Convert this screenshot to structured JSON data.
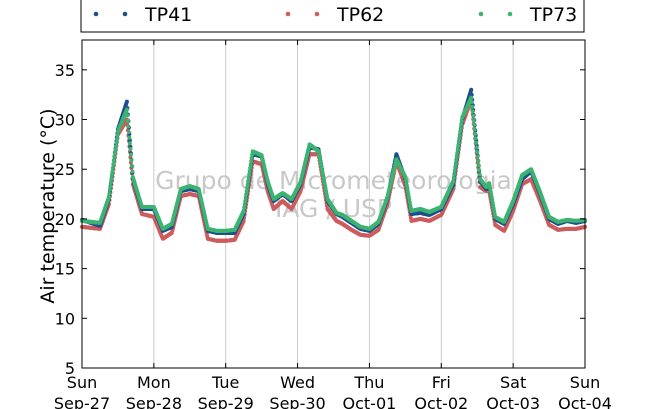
{
  "chart_data": {
    "type": "scatter",
    "ylabel": "Air temperature (°C)",
    "ylim": [
      5,
      38
    ],
    "yticks": [
      5,
      10,
      15,
      20,
      25,
      30,
      35
    ],
    "xlim": [
      "2015-09-27 00:00",
      "2015-10-04 00:00"
    ],
    "xticks": [
      {
        "day": "Sun",
        "date": "Sep-27"
      },
      {
        "day": "Mon",
        "date": "Sep-28"
      },
      {
        "day": "Tue",
        "date": "Sep-29"
      },
      {
        "day": "Wed",
        "date": "Sep-30"
      },
      {
        "day": "Thu",
        "date": "Oct-01"
      },
      {
        "day": "Fri",
        "date": "Oct-02"
      },
      {
        "day": "Sat",
        "date": "Oct-03"
      },
      {
        "day": "Sun",
        "date": "Oct-04"
      }
    ],
    "grid": "vertical",
    "legend_position": "top",
    "watermark": [
      "Grupo de Micrometeorologia",
      "IAG / USP"
    ],
    "series": [
      {
        "name": "TP41",
        "color": "#1f4e8c",
        "x": [
          "2015-09-27 00:00",
          "2015-09-27 06:00",
          "2015-09-27 09:00",
          "2015-09-27 12:00",
          "2015-09-27 15:00",
          "2015-09-27 17:00",
          "2015-09-27 20:00",
          "2015-09-28 00:00",
          "2015-09-28 03:00",
          "2015-09-28 06:00",
          "2015-09-28 09:00",
          "2015-09-28 12:00",
          "2015-09-28 15:00",
          "2015-09-28 18:00",
          "2015-09-28 21:00",
          "2015-09-29 00:00",
          "2015-09-29 03:00",
          "2015-09-29 06:00",
          "2015-09-29 09:00",
          "2015-09-29 12:00",
          "2015-09-29 14:00",
          "2015-09-29 16:00",
          "2015-09-29 19:00",
          "2015-09-29 22:00",
          "2015-09-30 01:00",
          "2015-09-30 04:00",
          "2015-09-30 07:00",
          "2015-09-30 10:00",
          "2015-09-30 13:00",
          "2015-09-30 15:00",
          "2015-09-30 18:00",
          "2015-09-30 21:00",
          "2015-10-01 00:00",
          "2015-10-01 03:00",
          "2015-10-01 06:00",
          "2015-10-01 09:00",
          "2015-10-01 12:00",
          "2015-10-01 14:00",
          "2015-10-01 17:00",
          "2015-10-01 20:00",
          "2015-10-02 00:00",
          "2015-10-02 04:00",
          "2015-10-02 07:00",
          "2015-10-02 10:00",
          "2015-10-02 13:00",
          "2015-10-02 15:00",
          "2015-10-02 16:00",
          "2015-10-02 18:00",
          "2015-10-02 21:00",
          "2015-10-03 00:00",
          "2015-10-03 03:00",
          "2015-10-03 06:00",
          "2015-10-03 09:00",
          "2015-10-03 12:00",
          "2015-10-03 15:00",
          "2015-10-03 18:00",
          "2015-10-03 21:00",
          "2015-10-04 00:00"
        ],
        "y": [
          19.9,
          19.3,
          22.0,
          29.0,
          31.8,
          24.0,
          21.0,
          21.0,
          18.8,
          19.2,
          22.8,
          23.0,
          22.8,
          18.8,
          18.6,
          18.6,
          18.6,
          20.5,
          26.5,
          26.3,
          23.5,
          21.8,
          22.5,
          21.8,
          23.5,
          27.2,
          27.0,
          21.8,
          20.5,
          20.2,
          19.6,
          19.0,
          18.8,
          19.5,
          22.0,
          26.5,
          24.0,
          20.5,
          20.6,
          20.4,
          21.0,
          23.5,
          30.0,
          33.0,
          23.8,
          23.0,
          23.5,
          20.0,
          19.5,
          21.5,
          24.0,
          24.8,
          22.5,
          20.0,
          19.5,
          19.8,
          19.6,
          19.8
        ]
      },
      {
        "name": "TP62",
        "color": "#cd5c5c",
        "x": [
          "2015-09-27 00:00",
          "2015-09-27 06:00",
          "2015-09-27 09:00",
          "2015-09-27 12:00",
          "2015-09-27 15:00",
          "2015-09-27 17:00",
          "2015-09-27 20:00",
          "2015-09-28 00:00",
          "2015-09-28 03:00",
          "2015-09-28 06:00",
          "2015-09-28 09:00",
          "2015-09-28 12:00",
          "2015-09-28 15:00",
          "2015-09-28 18:00",
          "2015-09-28 21:00",
          "2015-09-29 00:00",
          "2015-09-29 03:00",
          "2015-09-29 06:00",
          "2015-09-29 09:00",
          "2015-09-29 12:00",
          "2015-09-29 14:00",
          "2015-09-29 16:00",
          "2015-09-29 19:00",
          "2015-09-29 22:00",
          "2015-09-30 01:00",
          "2015-09-30 04:00",
          "2015-09-30 07:00",
          "2015-09-30 10:00",
          "2015-09-30 13:00",
          "2015-09-30 15:00",
          "2015-09-30 18:00",
          "2015-09-30 21:00",
          "2015-10-01 00:00",
          "2015-10-01 03:00",
          "2015-10-01 06:00",
          "2015-10-01 09:00",
          "2015-10-01 12:00",
          "2015-10-01 14:00",
          "2015-10-01 17:00",
          "2015-10-01 20:00",
          "2015-10-02 00:00",
          "2015-10-02 04:00",
          "2015-10-02 07:00",
          "2015-10-02 10:00",
          "2015-10-02 13:00",
          "2015-10-02 15:00",
          "2015-10-02 16:00",
          "2015-10-02 18:00",
          "2015-10-02 21:00",
          "2015-10-03 00:00",
          "2015-10-03 03:00",
          "2015-10-03 06:00",
          "2015-10-03 09:00",
          "2015-10-03 12:00",
          "2015-10-03 15:00",
          "2015-10-03 18:00",
          "2015-10-03 21:00",
          "2015-10-04 00:00"
        ],
        "y": [
          19.2,
          19.0,
          21.5,
          28.5,
          30.0,
          23.5,
          20.5,
          20.2,
          18.0,
          18.6,
          22.3,
          22.5,
          22.3,
          18.0,
          17.8,
          17.8,
          17.9,
          19.8,
          25.8,
          25.5,
          22.8,
          21.0,
          21.8,
          21.0,
          22.8,
          26.5,
          26.5,
          21.0,
          19.8,
          19.5,
          18.9,
          18.4,
          18.3,
          18.9,
          21.5,
          25.8,
          23.3,
          19.8,
          20.0,
          19.8,
          20.4,
          23.0,
          29.5,
          32.0,
          23.2,
          22.8,
          22.8,
          19.4,
          18.8,
          20.8,
          23.5,
          24.0,
          21.8,
          19.4,
          18.9,
          19.0,
          19.0,
          19.2
        ]
      },
      {
        "name": "TP73",
        "color": "#3cb371",
        "x": [
          "2015-09-27 00:00",
          "2015-09-27 06:00",
          "2015-09-27 09:00",
          "2015-09-27 12:00",
          "2015-09-27 15:00",
          "2015-09-27 17:00",
          "2015-09-27 20:00",
          "2015-09-28 00:00",
          "2015-09-28 03:00",
          "2015-09-28 06:00",
          "2015-09-28 09:00",
          "2015-09-28 12:00",
          "2015-09-28 15:00",
          "2015-09-28 18:00",
          "2015-09-28 21:00",
          "2015-09-29 00:00",
          "2015-09-29 03:00",
          "2015-09-29 06:00",
          "2015-09-29 09:00",
          "2015-09-29 12:00",
          "2015-09-29 14:00",
          "2015-09-29 16:00",
          "2015-09-29 19:00",
          "2015-09-29 22:00",
          "2015-09-30 01:00",
          "2015-09-30 04:00",
          "2015-09-30 07:00",
          "2015-09-30 10:00",
          "2015-09-30 13:00",
          "2015-09-30 15:00",
          "2015-09-30 18:00",
          "2015-09-30 21:00",
          "2015-10-01 00:00",
          "2015-10-01 03:00",
          "2015-10-01 06:00",
          "2015-10-01 09:00",
          "2015-10-01 12:00",
          "2015-10-01 14:00",
          "2015-10-01 17:00",
          "2015-10-01 20:00",
          "2015-10-02 00:00",
          "2015-10-02 04:00",
          "2015-10-02 07:00",
          "2015-10-02 10:00",
          "2015-10-02 13:00",
          "2015-10-02 15:00",
          "2015-10-02 16:00",
          "2015-10-02 18:00",
          "2015-10-02 21:00",
          "2015-10-03 00:00",
          "2015-10-03 03:00",
          "2015-10-03 06:00",
          "2015-10-03 09:00",
          "2015-10-03 12:00",
          "2015-10-03 15:00",
          "2015-10-03 18:00",
          "2015-10-03 21:00",
          "2015-10-04 00:00"
        ],
        "y": [
          19.8,
          19.6,
          22.2,
          28.8,
          31.0,
          24.2,
          21.2,
          21.2,
          19.0,
          19.5,
          23.0,
          23.3,
          23.0,
          19.0,
          18.8,
          18.8,
          18.9,
          20.8,
          26.8,
          26.4,
          23.8,
          22.0,
          22.6,
          22.0,
          23.7,
          27.5,
          26.8,
          22.0,
          20.6,
          20.4,
          19.8,
          19.2,
          19.0,
          19.7,
          22.2,
          26.0,
          24.2,
          20.8,
          21.0,
          20.7,
          21.2,
          23.8,
          30.2,
          32.2,
          24.0,
          23.2,
          23.6,
          20.2,
          19.7,
          21.8,
          24.4,
          25.0,
          22.7,
          20.2,
          19.7,
          19.9,
          19.8,
          19.9
        ]
      }
    ]
  }
}
